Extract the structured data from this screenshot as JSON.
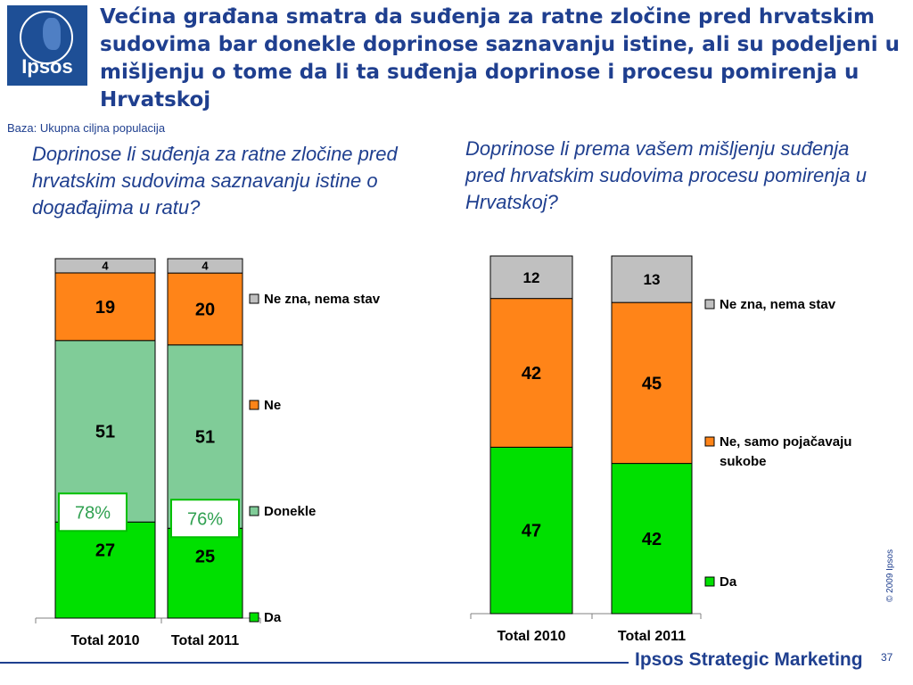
{
  "logo": {
    "text": "Ipsos"
  },
  "title": "Većina građana smatra da suđenja za ratne zločine pred hrvatskim sudovima bar donekle doprinose saznavanju istine, ali su podeljeni u mišljenju o tome da li ta suđenja doprinose i procesu pomirenja u Hrvatskoj",
  "base_note": "Baza: Ukupna ciljna populacija",
  "question_left": "Doprinose li suđenja za ratne zločine pred hrvatskim sudovima saznavanju istine o događajima u ratu?",
  "question_right": "Doprinose li prema vašem mišljenju suđenja pred hrvatskim sudovima procesu pomirenja u Hrvatskoj?",
  "colors": {
    "da": "#00e000",
    "donekle": "#80cc98",
    "ne": "#ff8418",
    "ne_zna": "#c0c0c0",
    "accent": "#1f3f8f",
    "highlight_border": "#00c000"
  },
  "chart_data": [
    {
      "type": "bar",
      "stacked": true,
      "categories": [
        "Total 2010",
        "Total 2011"
      ],
      "series": [
        {
          "name": "Da",
          "values": [
            27,
            25
          ]
        },
        {
          "name": "Donekle",
          "values": [
            51,
            51
          ]
        },
        {
          "name": "Ne",
          "values": [
            19,
            20
          ]
        },
        {
          "name": "Ne zna, nema stav",
          "values": [
            4,
            4
          ]
        }
      ],
      "annotations": [
        "78%",
        "76%"
      ],
      "legend": "right"
    },
    {
      "type": "bar",
      "stacked": true,
      "categories": [
        "Total 2010",
        "Total 2011"
      ],
      "series": [
        {
          "name": "Da",
          "values": [
            47,
            42
          ]
        },
        {
          "name": "Ne, samo pojačavaju sukobe",
          "values": [
            42,
            45
          ]
        },
        {
          "name": "Ne zna, nema stav",
          "values": [
            12,
            13
          ]
        }
      ],
      "legend": "right"
    }
  ],
  "copyright": "© 2009 Ipsos",
  "footer_brand": "Ipsos Strategic Marketing",
  "page_number": "37"
}
